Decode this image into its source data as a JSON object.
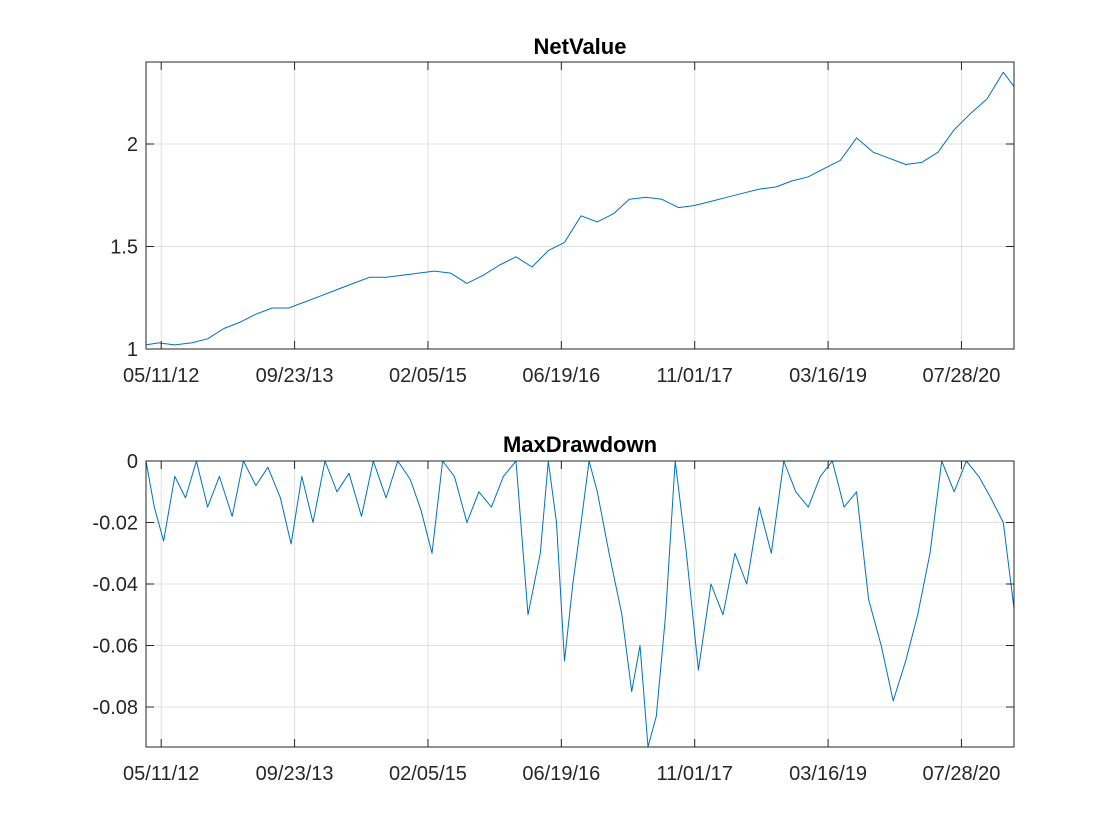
{
  "colors": {
    "series": "#0072BD",
    "axis": "#262626",
    "grid": "#dfdfdf"
  },
  "chart_data": [
    {
      "type": "line",
      "title": "NetValue",
      "xlabel": "",
      "ylabel": "",
      "grid": true,
      "xlim": [
        "2012-03-15",
        "2021-02-10"
      ],
      "ylim": [
        1,
        2.4
      ],
      "xticks": [
        "2012-05-11",
        "2013-09-23",
        "2015-02-05",
        "2016-06-19",
        "2017-11-01",
        "2019-03-16",
        "2020-07-28"
      ],
      "xtick_labels": [
        "05/11/12",
        "09/23/13",
        "02/05/15",
        "06/19/16",
        "11/01/17",
        "03/16/19",
        "07/28/20"
      ],
      "yticks": [
        1,
        1.5,
        2
      ],
      "ytick_labels": [
        "1",
        "1.5",
        "2"
      ],
      "series": [
        {
          "x": [
            "2012-03-15",
            "2012-05-01",
            "2012-07-01",
            "2012-09-01",
            "2012-11-01",
            "2013-01-01",
            "2013-03-01",
            "2013-05-01",
            "2013-07-01",
            "2013-09-01",
            "2013-11-01",
            "2014-01-01",
            "2014-03-01",
            "2014-05-01",
            "2014-07-01",
            "2014-09-01",
            "2014-11-01",
            "2015-01-01",
            "2015-03-01",
            "2015-05-01",
            "2015-07-01",
            "2015-09-01",
            "2015-11-01",
            "2016-01-01",
            "2016-03-01",
            "2016-05-01",
            "2016-07-01",
            "2016-09-01",
            "2016-11-01",
            "2017-01-01",
            "2017-03-01",
            "2017-05-01",
            "2017-07-01",
            "2017-09-01",
            "2017-11-01",
            "2018-01-01",
            "2018-03-01",
            "2018-05-01",
            "2018-07-01",
            "2018-09-01",
            "2018-11-01",
            "2019-01-01",
            "2019-03-01",
            "2019-05-01",
            "2019-07-01",
            "2019-09-01",
            "2019-11-01",
            "2020-01-01",
            "2020-03-01",
            "2020-05-01",
            "2020-07-01",
            "2020-09-01",
            "2020-11-01",
            "2021-01-01",
            "2021-02-10"
          ],
          "y": [
            1.02,
            1.03,
            1.02,
            1.03,
            1.05,
            1.1,
            1.13,
            1.17,
            1.2,
            1.2,
            1.23,
            1.26,
            1.29,
            1.32,
            1.35,
            1.35,
            1.36,
            1.37,
            1.38,
            1.37,
            1.32,
            1.36,
            1.41,
            1.45,
            1.4,
            1.48,
            1.52,
            1.65,
            1.62,
            1.66,
            1.73,
            1.74,
            1.73,
            1.69,
            1.7,
            1.72,
            1.74,
            1.76,
            1.78,
            1.79,
            1.82,
            1.84,
            1.88,
            1.92,
            2.03,
            1.96,
            1.93,
            1.9,
            1.91,
            1.96,
            2.07,
            2.15,
            2.22,
            2.35,
            2.28
          ]
        }
      ]
    },
    {
      "type": "line",
      "title": "MaxDrawdown",
      "xlabel": "",
      "ylabel": "",
      "grid": true,
      "xlim": [
        "2012-03-15",
        "2021-02-10"
      ],
      "ylim": [
        -0.093,
        0
      ],
      "xticks": [
        "2012-05-11",
        "2013-09-23",
        "2015-02-05",
        "2016-06-19",
        "2017-11-01",
        "2019-03-16",
        "2020-07-28"
      ],
      "xtick_labels": [
        "05/11/12",
        "09/23/13",
        "02/05/15",
        "06/19/16",
        "11/01/17",
        "03/16/19",
        "07/28/20"
      ],
      "yticks": [
        -0.08,
        -0.06,
        -0.04,
        -0.02,
        0
      ],
      "ytick_labels": [
        "-0.08",
        "-0.06",
        "-0.04",
        "-0.02",
        "0"
      ],
      "series": [
        {
          "x": [
            "2012-03-15",
            "2012-04-15",
            "2012-05-20",
            "2012-07-01",
            "2012-08-10",
            "2012-09-20",
            "2012-11-01",
            "2012-12-15",
            "2013-02-01",
            "2013-03-15",
            "2013-05-01",
            "2013-06-15",
            "2013-08-01",
            "2013-09-10",
            "2013-10-20",
            "2013-12-01",
            "2014-01-15",
            "2014-03-01",
            "2014-04-15",
            "2014-06-01",
            "2014-07-15",
            "2014-09-01",
            "2014-10-15",
            "2014-12-01",
            "2015-01-10",
            "2015-02-20",
            "2015-04-01",
            "2015-05-15",
            "2015-07-01",
            "2015-08-15",
            "2015-10-01",
            "2015-11-15",
            "2016-01-01",
            "2016-02-15",
            "2016-04-01",
            "2016-05-01",
            "2016-06-01",
            "2016-07-01",
            "2016-08-01",
            "2016-09-01",
            "2016-10-01",
            "2016-11-01",
            "2016-12-15",
            "2017-02-01",
            "2017-03-10",
            "2017-04-10",
            "2017-05-10",
            "2017-06-10",
            "2017-07-15",
            "2017-08-20",
            "2017-10-01",
            "2017-11-15",
            "2018-01-01",
            "2018-02-15",
            "2018-04-01",
            "2018-05-15",
            "2018-07-01",
            "2018-08-15",
            "2018-10-01",
            "2018-11-15",
            "2019-01-01",
            "2019-02-15",
            "2019-04-01",
            "2019-05-15",
            "2019-07-01",
            "2019-08-15",
            "2019-10-01",
            "2019-11-15",
            "2020-01-01",
            "2020-02-15",
            "2020-04-01",
            "2020-05-15",
            "2020-07-01",
            "2020-08-15",
            "2020-10-01",
            "2020-11-15",
            "2021-01-01",
            "2021-02-10"
          ],
          "y": [
            0,
            -0.015,
            -0.026,
            -0.005,
            -0.012,
            0,
            -0.015,
            -0.005,
            -0.018,
            0,
            -0.008,
            -0.002,
            -0.012,
            -0.027,
            -0.005,
            -0.02,
            0,
            -0.01,
            -0.004,
            -0.018,
            0,
            -0.012,
            0,
            -0.006,
            -0.016,
            -0.03,
            0,
            -0.005,
            -0.02,
            -0.01,
            -0.015,
            -0.005,
            0,
            -0.05,
            -0.03,
            0,
            -0.02,
            -0.065,
            -0.04,
            -0.02,
            0,
            -0.01,
            -0.03,
            -0.05,
            -0.075,
            -0.06,
            -0.093,
            -0.083,
            -0.05,
            0,
            -0.03,
            -0.068,
            -0.04,
            -0.05,
            -0.03,
            -0.04,
            -0.015,
            -0.03,
            0,
            -0.01,
            -0.015,
            -0.005,
            0,
            -0.015,
            -0.01,
            -0.045,
            -0.06,
            -0.078,
            -0.065,
            -0.05,
            -0.03,
            0,
            -0.01,
            0,
            -0.005,
            -0.012,
            -0.02,
            -0.048
          ]
        }
      ]
    }
  ]
}
